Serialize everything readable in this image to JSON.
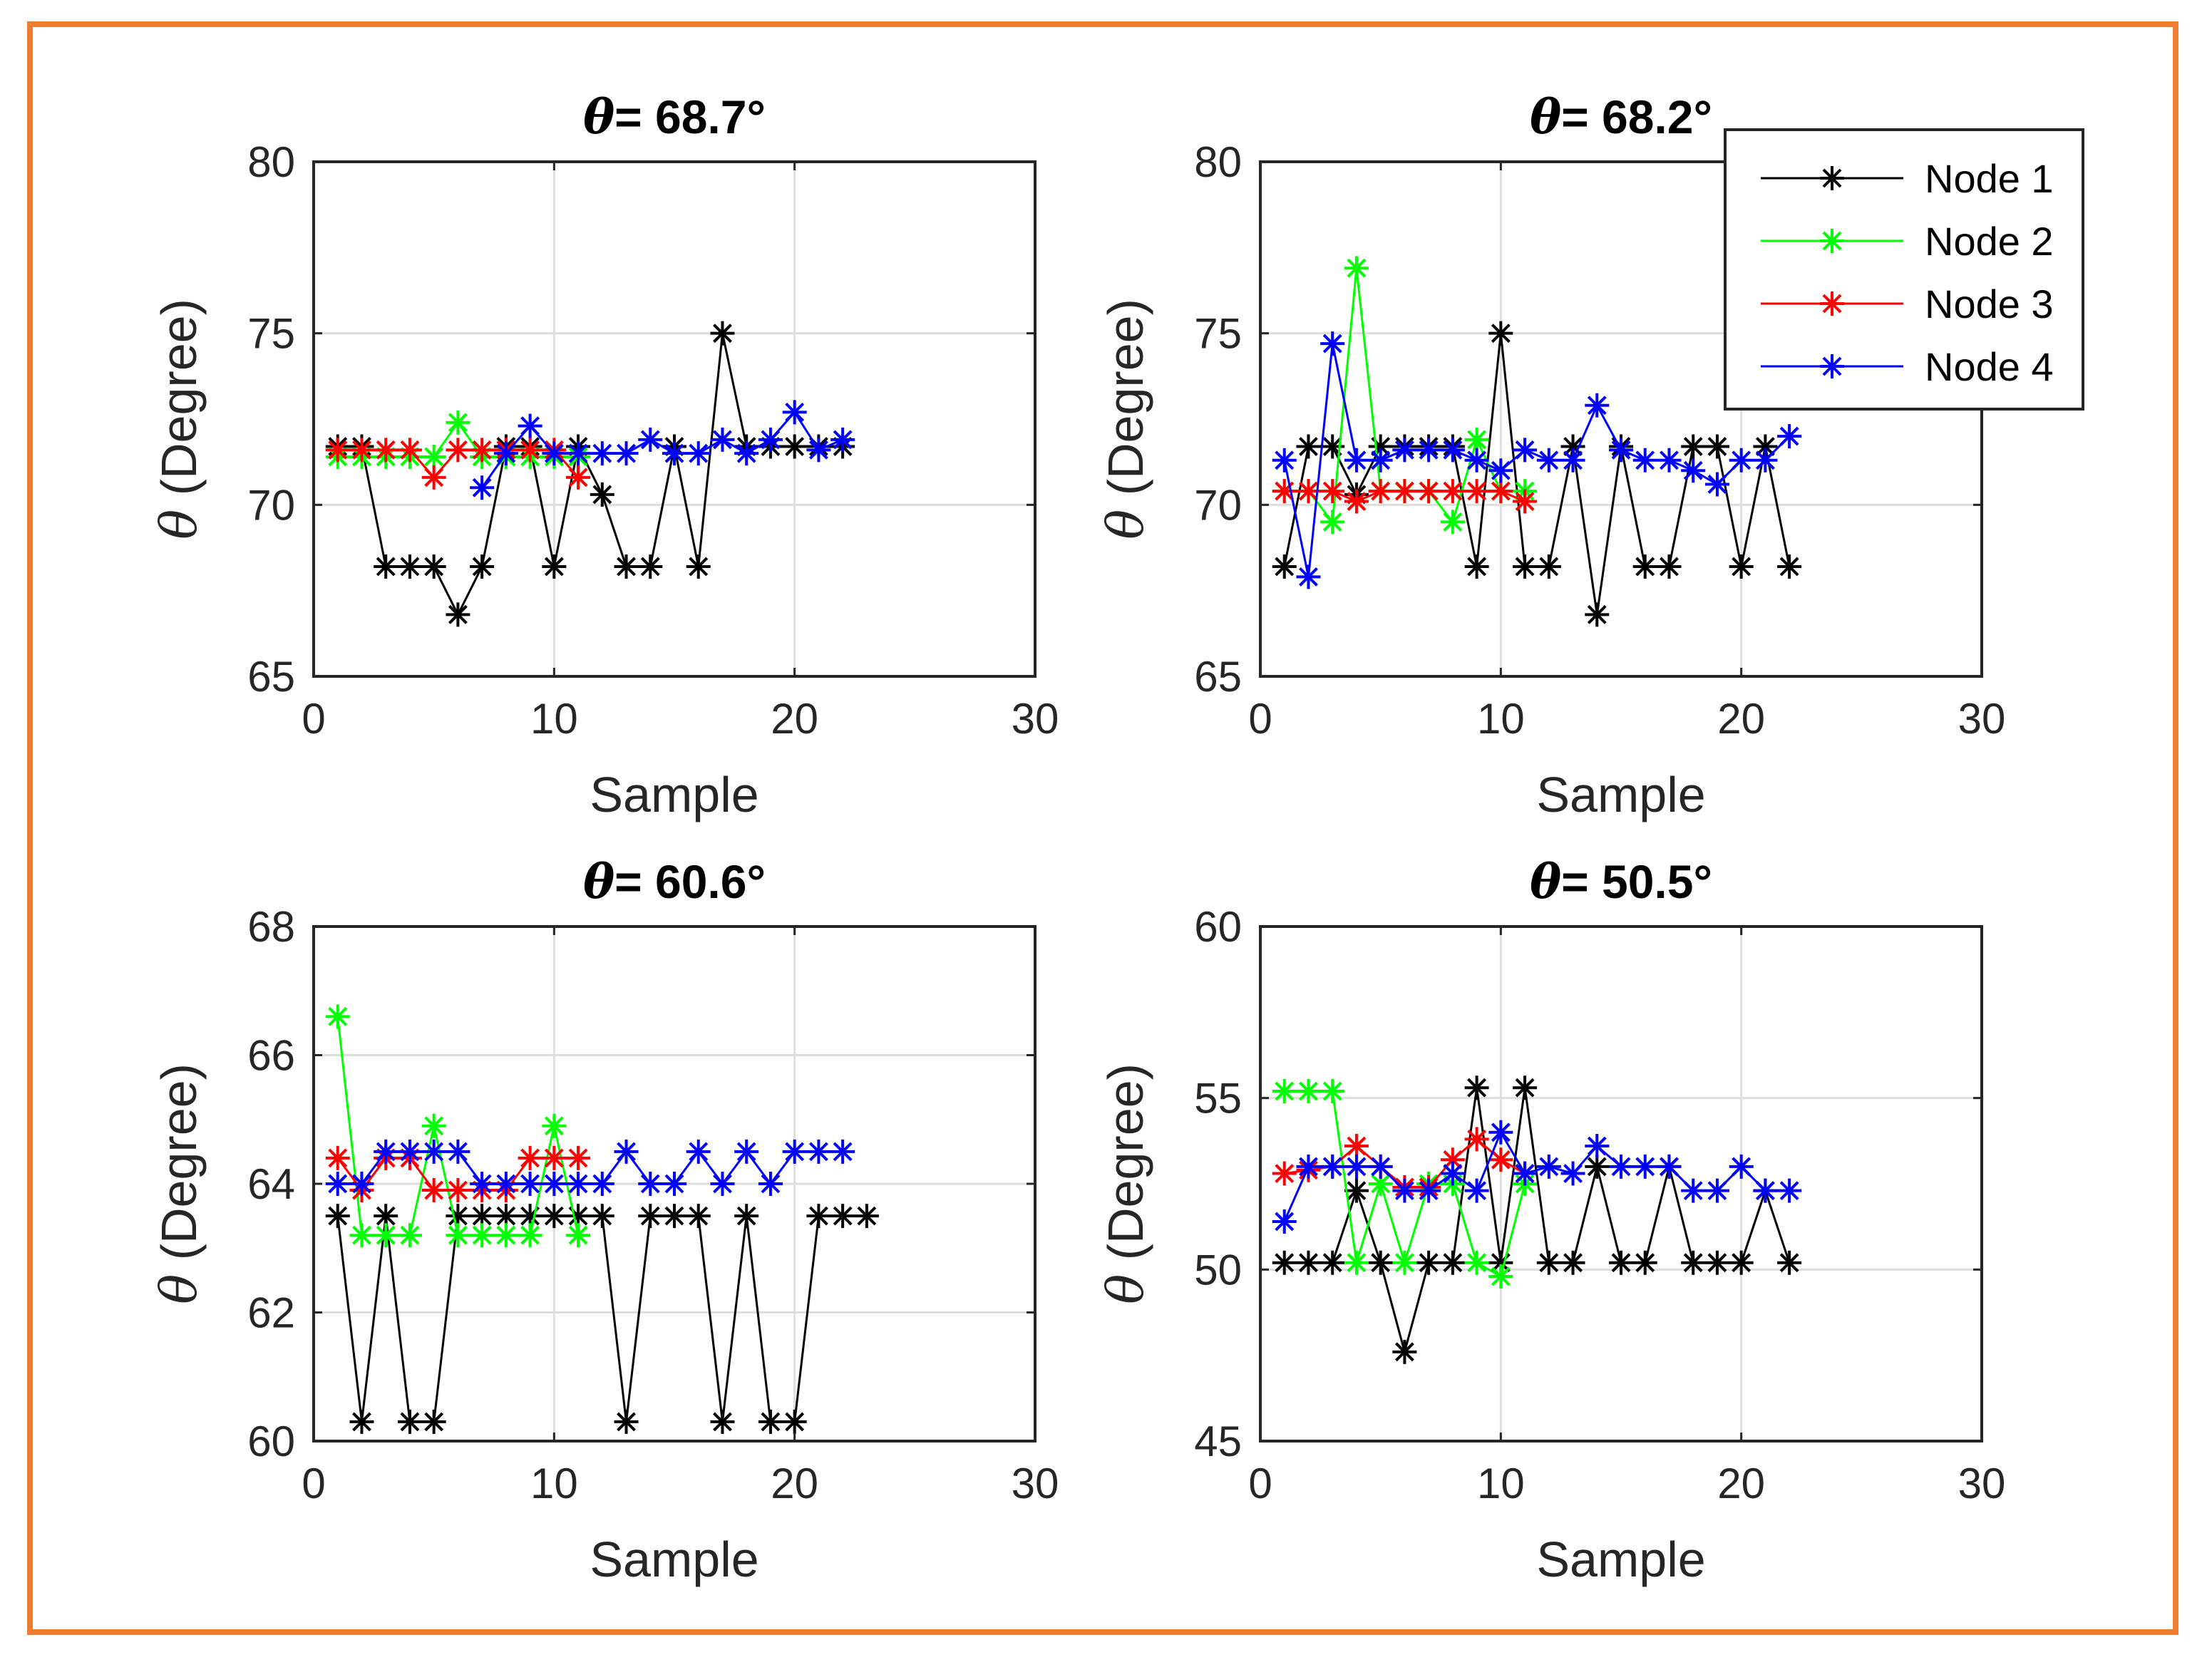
{
  "colors": {
    "frame": "#ED7D31",
    "series": [
      "#000000",
      "#00FF00",
      "#FF0000",
      "#0000FF"
    ],
    "grid": "#DEDEDE"
  },
  "legend": {
    "placement": "top-right of subplot 2",
    "entries": [
      "Node 1",
      "Node 2",
      "Node 3",
      "Node 4"
    ]
  },
  "chart_data": [
    {
      "type": "line",
      "title_symbol": "θ",
      "title": "= 68.7°",
      "xlabel": "Sample",
      "ylabel_symbol": "θ",
      "ylabel": "(Degree)",
      "xlim": [
        0,
        30
      ],
      "ylim": [
        65,
        80
      ],
      "xticks": [
        0,
        10,
        20,
        30
      ],
      "yticks": [
        65,
        70,
        75,
        80
      ],
      "grid": true,
      "marker": "asterisk",
      "series": [
        {
          "name": "Node 1",
          "x": [
            1,
            2,
            3,
            4,
            5,
            6,
            7,
            8,
            9,
            10,
            11,
            12,
            13,
            14,
            15,
            16,
            17,
            18,
            19,
            20,
            21,
            22
          ],
          "y": [
            71.7,
            71.7,
            68.2,
            68.2,
            68.2,
            66.8,
            68.2,
            71.7,
            71.7,
            68.2,
            71.7,
            70.3,
            68.2,
            68.2,
            71.7,
            68.2,
            75.0,
            71.7,
            71.7,
            71.7,
            71.7,
            71.7
          ]
        },
        {
          "name": "Node 2",
          "x": [
            1,
            2,
            3,
            4,
            5,
            6,
            7,
            8,
            9,
            10,
            11
          ],
          "y": [
            71.4,
            71.4,
            71.4,
            71.4,
            71.4,
            72.4,
            71.4,
            71.4,
            71.4,
            71.4,
            71.4
          ]
        },
        {
          "name": "Node 3",
          "x": [
            1,
            2,
            3,
            4,
            5,
            6,
            7,
            8,
            9,
            10,
            11
          ],
          "y": [
            71.6,
            71.6,
            71.6,
            71.6,
            70.8,
            71.6,
            71.6,
            71.6,
            71.6,
            71.6,
            70.8
          ]
        },
        {
          "name": "Node 4",
          "x": [
            7,
            8,
            9,
            10,
            11,
            12,
            13,
            14,
            15,
            16,
            17,
            18,
            19,
            20,
            21,
            22
          ],
          "y": [
            70.5,
            71.5,
            72.3,
            71.5,
            71.5,
            71.5,
            71.5,
            71.9,
            71.5,
            71.5,
            71.9,
            71.5,
            71.9,
            72.7,
            71.6,
            71.9
          ]
        }
      ]
    },
    {
      "type": "line",
      "title_symbol": "θ",
      "title": "= 68.2°",
      "xlabel": "Sample",
      "ylabel_symbol": "θ",
      "ylabel": "(Degree)",
      "xlim": [
        0,
        30
      ],
      "ylim": [
        65,
        80
      ],
      "xticks": [
        0,
        10,
        20,
        30
      ],
      "yticks": [
        65,
        70,
        75,
        80
      ],
      "grid": true,
      "marker": "asterisk",
      "series": [
        {
          "name": "Node 1",
          "x": [
            1,
            2,
            3,
            4,
            5,
            6,
            7,
            8,
            9,
            10,
            11,
            12,
            13,
            14,
            15,
            16,
            17,
            18,
            19,
            20,
            21,
            22
          ],
          "y": [
            68.2,
            71.7,
            71.7,
            70.3,
            71.7,
            71.7,
            71.7,
            71.7,
            68.2,
            75.0,
            68.2,
            68.2,
            71.7,
            66.8,
            71.7,
            68.2,
            68.2,
            71.7,
            71.7,
            68.2,
            71.7,
            68.2
          ]
        },
        {
          "name": "Node 2",
          "x": [
            1,
            2,
            3,
            4,
            5,
            6,
            7,
            8,
            9,
            10,
            11
          ],
          "y": [
            70.4,
            70.4,
            69.5,
            76.9,
            70.4,
            70.4,
            70.4,
            69.5,
            71.9,
            70.4,
            70.4
          ]
        },
        {
          "name": "Node 3",
          "x": [
            1,
            2,
            3,
            4,
            5,
            6,
            7,
            8,
            9,
            10,
            11
          ],
          "y": [
            70.4,
            70.4,
            70.4,
            70.1,
            70.4,
            70.4,
            70.4,
            70.4,
            70.4,
            70.4,
            70.1
          ]
        },
        {
          "name": "Node 4",
          "x": [
            1,
            2,
            3,
            4,
            5,
            6,
            7,
            8,
            9,
            10,
            11,
            12,
            13,
            14,
            15,
            16,
            17,
            18,
            19,
            20,
            21,
            22
          ],
          "y": [
            71.3,
            67.9,
            74.7,
            71.3,
            71.3,
            71.6,
            71.6,
            71.6,
            71.3,
            71.0,
            71.6,
            71.3,
            71.3,
            72.9,
            71.6,
            71.3,
            71.3,
            71.0,
            70.6,
            71.3,
            71.3,
            72.0
          ]
        }
      ]
    },
    {
      "type": "line",
      "title_symbol": "θ",
      "title": "= 60.6°",
      "xlabel": "Sample",
      "ylabel_symbol": "θ",
      "ylabel": "(Degree)",
      "xlim": [
        0,
        30
      ],
      "ylim": [
        60,
        68
      ],
      "xticks": [
        0,
        10,
        20,
        30
      ],
      "yticks": [
        60,
        62,
        64,
        66,
        68
      ],
      "grid": true,
      "marker": "asterisk",
      "series": [
        {
          "name": "Node 1",
          "x": [
            1,
            2,
            3,
            4,
            5,
            6,
            7,
            8,
            9,
            10,
            11,
            12,
            13,
            14,
            15,
            16,
            17,
            18,
            19,
            20,
            21,
            22,
            23
          ],
          "y": [
            63.5,
            60.3,
            63.5,
            60.3,
            60.3,
            63.5,
            63.5,
            63.5,
            63.5,
            63.5,
            63.5,
            63.5,
            60.3,
            63.5,
            63.5,
            63.5,
            60.3,
            63.5,
            60.3,
            60.3,
            63.5,
            63.5,
            63.5
          ]
        },
        {
          "name": "Node 2",
          "x": [
            1,
            2,
            3,
            4,
            5,
            6,
            7,
            8,
            9,
            10,
            11
          ],
          "y": [
            66.6,
            63.2,
            63.2,
            63.2,
            64.9,
            63.2,
            63.2,
            63.2,
            63.2,
            64.9,
            63.2
          ]
        },
        {
          "name": "Node 3",
          "x": [
            1,
            2,
            3,
            4,
            5,
            6,
            7,
            8,
            9,
            10,
            11
          ],
          "y": [
            64.4,
            63.9,
            64.4,
            64.4,
            63.9,
            63.9,
            63.9,
            63.9,
            64.4,
            64.4,
            64.4
          ]
        },
        {
          "name": "Node 4",
          "x": [
            1,
            2,
            3,
            4,
            5,
            6,
            7,
            8,
            9,
            10,
            11,
            12,
            13,
            14,
            15,
            16,
            17,
            18,
            19,
            20,
            21,
            22
          ],
          "y": [
            64.0,
            64.0,
            64.5,
            64.5,
            64.5,
            64.5,
            64.0,
            64.0,
            64.0,
            64.0,
            64.0,
            64.0,
            64.5,
            64.0,
            64.0,
            64.5,
            64.0,
            64.5,
            64.0,
            64.5,
            64.5,
            64.5
          ]
        }
      ]
    },
    {
      "type": "line",
      "title_symbol": "θ",
      "title": "= 50.5°",
      "xlabel": "Sample",
      "ylabel_symbol": "θ",
      "ylabel": "(Degree)",
      "xlim": [
        0,
        30
      ],
      "ylim": [
        45,
        60
      ],
      "xticks": [
        0,
        10,
        20,
        30
      ],
      "yticks": [
        45,
        50,
        55,
        60
      ],
      "grid": true,
      "marker": "asterisk",
      "series": [
        {
          "name": "Node 1",
          "x": [
            1,
            2,
            3,
            4,
            5,
            6,
            7,
            8,
            9,
            10,
            11,
            12,
            13,
            14,
            15,
            16,
            17,
            18,
            19,
            20,
            21,
            22
          ],
          "y": [
            50.2,
            50.2,
            50.2,
            52.3,
            50.2,
            47.6,
            50.2,
            50.2,
            55.3,
            50.2,
            55.3,
            50.2,
            50.2,
            53.0,
            50.2,
            50.2,
            53.0,
            50.2,
            50.2,
            50.2,
            52.3,
            50.2
          ]
        },
        {
          "name": "Node 2",
          "x": [
            1,
            2,
            3,
            4,
            5,
            6,
            7,
            8,
            9,
            10,
            11
          ],
          "y": [
            55.2,
            55.2,
            55.2,
            50.2,
            52.5,
            50.2,
            52.5,
            52.5,
            50.2,
            49.8,
            52.5
          ]
        },
        {
          "name": "Node 3",
          "x": [
            1,
            2,
            3,
            4,
            5,
            6,
            7,
            8,
            9,
            10,
            11
          ],
          "y": [
            52.8,
            52.9,
            53.0,
            53.6,
            53.0,
            52.4,
            52.4,
            53.2,
            53.8,
            53.2,
            52.8
          ]
        },
        {
          "name": "Node 4",
          "x": [
            1,
            2,
            3,
            4,
            5,
            6,
            7,
            8,
            9,
            10,
            11,
            12,
            13,
            14,
            15,
            16,
            17,
            18,
            19,
            20,
            21,
            22
          ],
          "y": [
            51.4,
            53.0,
            53.0,
            53.0,
            53.0,
            52.3,
            52.3,
            52.8,
            52.3,
            54.0,
            52.8,
            53.0,
            52.8,
            53.6,
            53.0,
            53.0,
            53.0,
            52.3,
            52.3,
            53.0,
            52.3,
            52.3
          ]
        }
      ]
    }
  ]
}
